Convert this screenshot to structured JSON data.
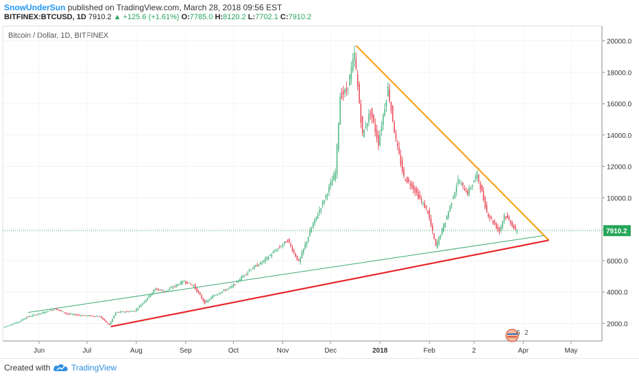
{
  "header": {
    "author": "SnowUnderSun",
    "published_text": "published on TradingView.com, March 28, 2018 09:56 EST",
    "symbol": "BITFINEX:BTCUSD, 1D",
    "price": "7910.2",
    "change": "▲ +125.6 (+1.61%)",
    "o_label": "O:",
    "o_value": "7785.0",
    "h_label": "H:",
    "h_value": "8120.2",
    "l_label": "L:",
    "l_value": "7702.1",
    "c_label": "C:",
    "c_value": "7910.2"
  },
  "chart_data": {
    "type": "candlestick",
    "title": "Bitcoin / Dollar, 1D, BITFINEX",
    "y_ticks": [
      "20000.0",
      "18000.0",
      "16000.0",
      "14000.0",
      "12000.0",
      "10000.0",
      "8000.0",
      "6000.0",
      "4000.0",
      "2000.0"
    ],
    "x_ticks": [
      "Jun",
      "Jul",
      "Aug",
      "Sep",
      "Oct",
      "Nov",
      "Dec",
      "2018",
      "Feb",
      "2",
      "Apr",
      "May"
    ],
    "ylim": [
      1000,
      21000
    ],
    "last_price_label": "7910.2",
    "last_price": 7910.2,
    "colors": {
      "up": "#53b987",
      "down": "#eb4d5c",
      "resistance": "#f7a21b",
      "support": "#e8262a",
      "inner_trend": "#3da870",
      "price_line": "#26a65b"
    },
    "trendlines": [
      {
        "color_key": "resistance",
        "from": [
          "2017-12-17",
          19700
        ],
        "to": [
          "2018-04-17",
          7300
        ]
      },
      {
        "color_key": "support",
        "from": [
          "2017-07-16",
          1800
        ],
        "to": [
          "2018-04-17",
          7300
        ]
      },
      {
        "color_key": "inner_trend",
        "from": [
          "2017-05-25",
          2700
        ],
        "to": [
          "2018-04-14",
          7600
        ]
      }
    ],
    "price_path": [
      [
        "2017-05-10",
        1750
      ],
      [
        "2017-05-20",
        2100
      ],
      [
        "2017-05-25",
        2400
      ],
      [
        "2017-06-05",
        2700
      ],
      [
        "2017-06-12",
        2950
      ],
      [
        "2017-06-20",
        2600
      ],
      [
        "2017-07-01",
        2500
      ],
      [
        "2017-07-10",
        2450
      ],
      [
        "2017-07-16",
        1900
      ],
      [
        "2017-07-20",
        2700
      ],
      [
        "2017-08-01",
        2800
      ],
      [
        "2017-08-05",
        3200
      ],
      [
        "2017-08-14",
        4200
      ],
      [
        "2017-08-20",
        4050
      ],
      [
        "2017-09-01",
        4700
      ],
      [
        "2017-09-07",
        4400
      ],
      [
        "2017-09-14",
        3300
      ],
      [
        "2017-09-20",
        3800
      ],
      [
        "2017-10-01",
        4350
      ],
      [
        "2017-10-12",
        5400
      ],
      [
        "2017-10-20",
        5900
      ],
      [
        "2017-11-05",
        7300
      ],
      [
        "2017-11-12",
        5900
      ],
      [
        "2017-11-20",
        8100
      ],
      [
        "2017-11-28",
        9900
      ],
      [
        "2017-12-05",
        11600
      ],
      [
        "2017-12-08",
        16500
      ],
      [
        "2017-12-12",
        16800
      ],
      [
        "2017-12-17",
        19100
      ],
      [
        "2017-12-22",
        14000
      ],
      [
        "2017-12-27",
        15500
      ],
      [
        "2018-01-01",
        13500
      ],
      [
        "2018-01-07",
        17000
      ],
      [
        "2018-01-12",
        13600
      ],
      [
        "2018-01-17",
        11300
      ],
      [
        "2018-01-22",
        10800
      ],
      [
        "2018-02-01",
        9100
      ],
      [
        "2018-02-06",
        6900
      ],
      [
        "2018-02-12",
        8500
      ],
      [
        "2018-02-20",
        11100
      ],
      [
        "2018-02-26",
        10300
      ],
      [
        "2018-03-04",
        11500
      ],
      [
        "2018-03-10",
        9100
      ],
      [
        "2018-03-15",
        8300
      ],
      [
        "2018-03-18",
        7900
      ],
      [
        "2018-03-21",
        8900
      ],
      [
        "2018-03-25",
        8450
      ],
      [
        "2018-03-28",
        7910
      ]
    ]
  },
  "watermark": {
    "left": "6",
    "right": "2"
  },
  "footer": {
    "created": "Created with",
    "brand": "TradingView"
  }
}
